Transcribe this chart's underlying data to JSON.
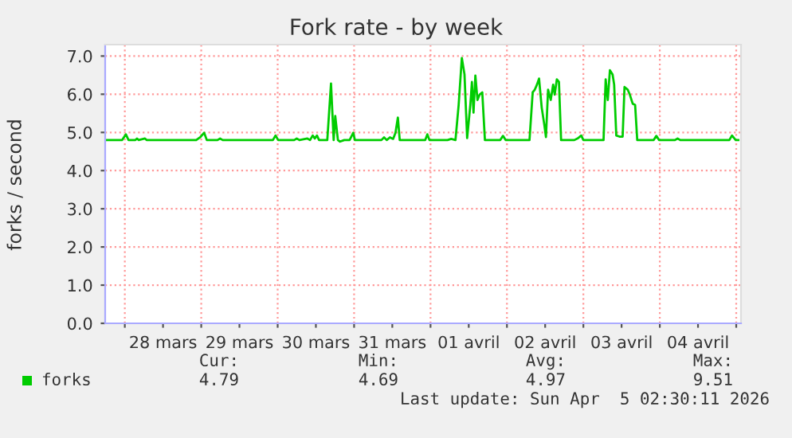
{
  "chart_data": {
    "type": "line",
    "title": "Fork rate - by week",
    "ylabel": "forks / second",
    "x": [
      "2026-03-27T18:00",
      "2026-03-27T23:10",
      "2026-03-28T00:20",
      "2026-03-28T01:10",
      "2026-03-28T03:20",
      "2026-03-28T03:50",
      "2026-03-28T04:20",
      "2026-03-28T06:20",
      "2026-03-28T06:50",
      "2026-03-28T22:25",
      "2026-03-28T23:45",
      "2026-03-29T00:55",
      "2026-03-29T01:45",
      "2026-03-29T05:05",
      "2026-03-29T05:55",
      "2026-03-29T06:45",
      "2026-03-29T22:30",
      "2026-03-29T23:20",
      "2026-03-30T00:10",
      "2026-03-30T05:10",
      "2026-03-30T06:00",
      "2026-03-30T06:50",
      "2026-03-30T09:20",
      "2026-03-30T10:10",
      "2026-03-30T11:00",
      "2026-03-30T11:40",
      "2026-03-30T12:20",
      "2026-03-30T13:00",
      "2026-03-30T15:35",
      "2026-03-30T16:45",
      "2026-03-30T17:35",
      "2026-03-30T18:05",
      "2026-03-30T18:55",
      "2026-03-30T19:35",
      "2026-03-30T20:55",
      "2026-03-30T22:35",
      "2026-03-30T23:45",
      "2026-03-31T00:15",
      "2026-03-31T08:35",
      "2026-03-31T09:25",
      "2026-03-31T10:15",
      "2026-03-31T11:15",
      "2026-03-31T12:15",
      "2026-03-31T13:00",
      "2026-03-31T13:45",
      "2026-03-31T14:20",
      "2026-03-31T15:10",
      "2026-03-31T22:20",
      "2026-03-31T23:00",
      "2026-03-31T23:40",
      "2026-04-01T05:20",
      "2026-04-01T06:30",
      "2026-04-01T07:50",
      "2026-04-01T08:50",
      "2026-04-01T09:50",
      "2026-04-01T10:40",
      "2026-04-01T11:30",
      "2026-04-01T12:30",
      "2026-04-01T13:00",
      "2026-04-01T13:30",
      "2026-04-01T14:05",
      "2026-04-01T14:45",
      "2026-04-01T15:25",
      "2026-04-01T16:15",
      "2026-04-01T17:05",
      "2026-04-01T21:55",
      "2026-04-01T22:45",
      "2026-04-01T23:35",
      "2026-04-02T07:05",
      "2026-04-02T08:05",
      "2026-04-02T08:45",
      "2026-04-02T09:25",
      "2026-04-02T10:05",
      "2026-04-02T10:55",
      "2026-04-02T11:45",
      "2026-04-02T12:15",
      "2026-04-02T12:55",
      "2026-04-02T13:45",
      "2026-04-02T14:30",
      "2026-04-02T15:00",
      "2026-04-02T15:40",
      "2026-04-02T16:20",
      "2026-04-02T17:00",
      "2026-04-02T21:10",
      "2026-04-02T22:20",
      "2026-04-02T23:20",
      "2026-04-03T00:00",
      "2026-04-03T06:20",
      "2026-04-03T07:00",
      "2026-04-03T07:40",
      "2026-04-03T08:20",
      "2026-04-03T09:10",
      "2026-04-03T09:40",
      "2026-04-03T10:20",
      "2026-04-03T11:20",
      "2026-04-03T12:20",
      "2026-04-03T12:55",
      "2026-04-03T13:55",
      "2026-04-03T14:35",
      "2026-04-03T15:30",
      "2026-04-03T16:15",
      "2026-04-03T16:55",
      "2026-04-03T22:05",
      "2026-04-03T22:55",
      "2026-04-03T23:45",
      "2026-04-04T04:45",
      "2026-04-04T05:35",
      "2026-04-04T06:25",
      "2026-04-04T21:50",
      "2026-04-04T22:40",
      "2026-04-04T23:50",
      "2026-04-05T00:40"
    ],
    "series": [
      {
        "name": "forks",
        "color": "#00cc00",
        "values": [
          4.8,
          4.8,
          4.95,
          4.8,
          4.8,
          4.84,
          4.8,
          4.84,
          4.8,
          4.8,
          4.88,
          4.99,
          4.8,
          4.8,
          4.84,
          4.8,
          4.8,
          4.92,
          4.8,
          4.8,
          4.84,
          4.8,
          4.84,
          4.8,
          4.92,
          4.84,
          4.92,
          4.8,
          4.8,
          6.28,
          4.8,
          5.43,
          4.8,
          4.76,
          4.8,
          4.8,
          4.99,
          4.8,
          4.8,
          4.87,
          4.8,
          4.87,
          4.83,
          4.99,
          5.39,
          4.8,
          4.8,
          4.8,
          4.95,
          4.8,
          4.8,
          4.83,
          4.8,
          5.72,
          6.95,
          6.52,
          4.85,
          5.72,
          6.32,
          5.52,
          6.49,
          5.85,
          5.99,
          6.05,
          4.8,
          4.8,
          4.91,
          4.8,
          4.8,
          6.05,
          6.12,
          6.25,
          6.41,
          5.65,
          5.19,
          4.88,
          6.12,
          5.85,
          6.25,
          5.99,
          6.39,
          6.32,
          4.8,
          4.8,
          4.85,
          4.92,
          4.8,
          4.8,
          6.39,
          5.85,
          6.63,
          6.52,
          6.25,
          4.92,
          4.89,
          4.89,
          6.19,
          6.12,
          5.99,
          5.75,
          5.72,
          4.8,
          4.8,
          4.91,
          4.8,
          4.8,
          4.84,
          4.8,
          4.8,
          4.92,
          4.8,
          4.8
        ]
      }
    ],
    "xlim": [
      "2026-03-27T17:50",
      "2026-04-05T01:30"
    ],
    "xticks": [
      {
        "value": "2026-03-28T00:00",
        "label": null
      },
      {
        "value": "2026-03-28T12:00",
        "label": "28 mars"
      },
      {
        "value": "2026-03-29T00:00",
        "label": null
      },
      {
        "value": "2026-03-29T12:00",
        "label": "29 mars"
      },
      {
        "value": "2026-03-30T00:00",
        "label": null
      },
      {
        "value": "2026-03-30T12:00",
        "label": "30 mars"
      },
      {
        "value": "2026-03-31T00:00",
        "label": null
      },
      {
        "value": "2026-03-31T12:00",
        "label": "31 mars"
      },
      {
        "value": "2026-04-01T00:00",
        "label": null
      },
      {
        "value": "2026-04-01T12:00",
        "label": "01 avril"
      },
      {
        "value": "2026-04-02T00:00",
        "label": null
      },
      {
        "value": "2026-04-02T12:00",
        "label": "02 avril"
      },
      {
        "value": "2026-04-03T00:00",
        "label": null
      },
      {
        "value": "2026-04-03T12:00",
        "label": "03 avril"
      },
      {
        "value": "2026-04-04T00:00",
        "label": null
      },
      {
        "value": "2026-04-04T12:00",
        "label": "04 avril"
      },
      {
        "value": "2026-04-05T00:00",
        "label": null
      }
    ],
    "ylim": [
      0,
      7.3
    ],
    "yticks": [
      {
        "value": 0,
        "label": "0.0"
      },
      {
        "value": 1,
        "label": "1.0"
      },
      {
        "value": 2,
        "label": "2.0"
      },
      {
        "value": 3,
        "label": "3.0"
      },
      {
        "value": 4,
        "label": "4.0"
      },
      {
        "value": 5,
        "label": "5.0"
      },
      {
        "value": 6,
        "label": "6.0"
      },
      {
        "value": 7,
        "label": "7.0"
      }
    ],
    "grid": true,
    "legend": "bottom left",
    "marker": "none",
    "line_style": "solid",
    "annotations": [
      "Cur:",
      "4.79",
      "Min:",
      "4.69",
      "Avg:",
      "4.97",
      "Max:",
      "9.51",
      "Last update: Sun Apr  5 02:30:11 2026"
    ]
  }
}
